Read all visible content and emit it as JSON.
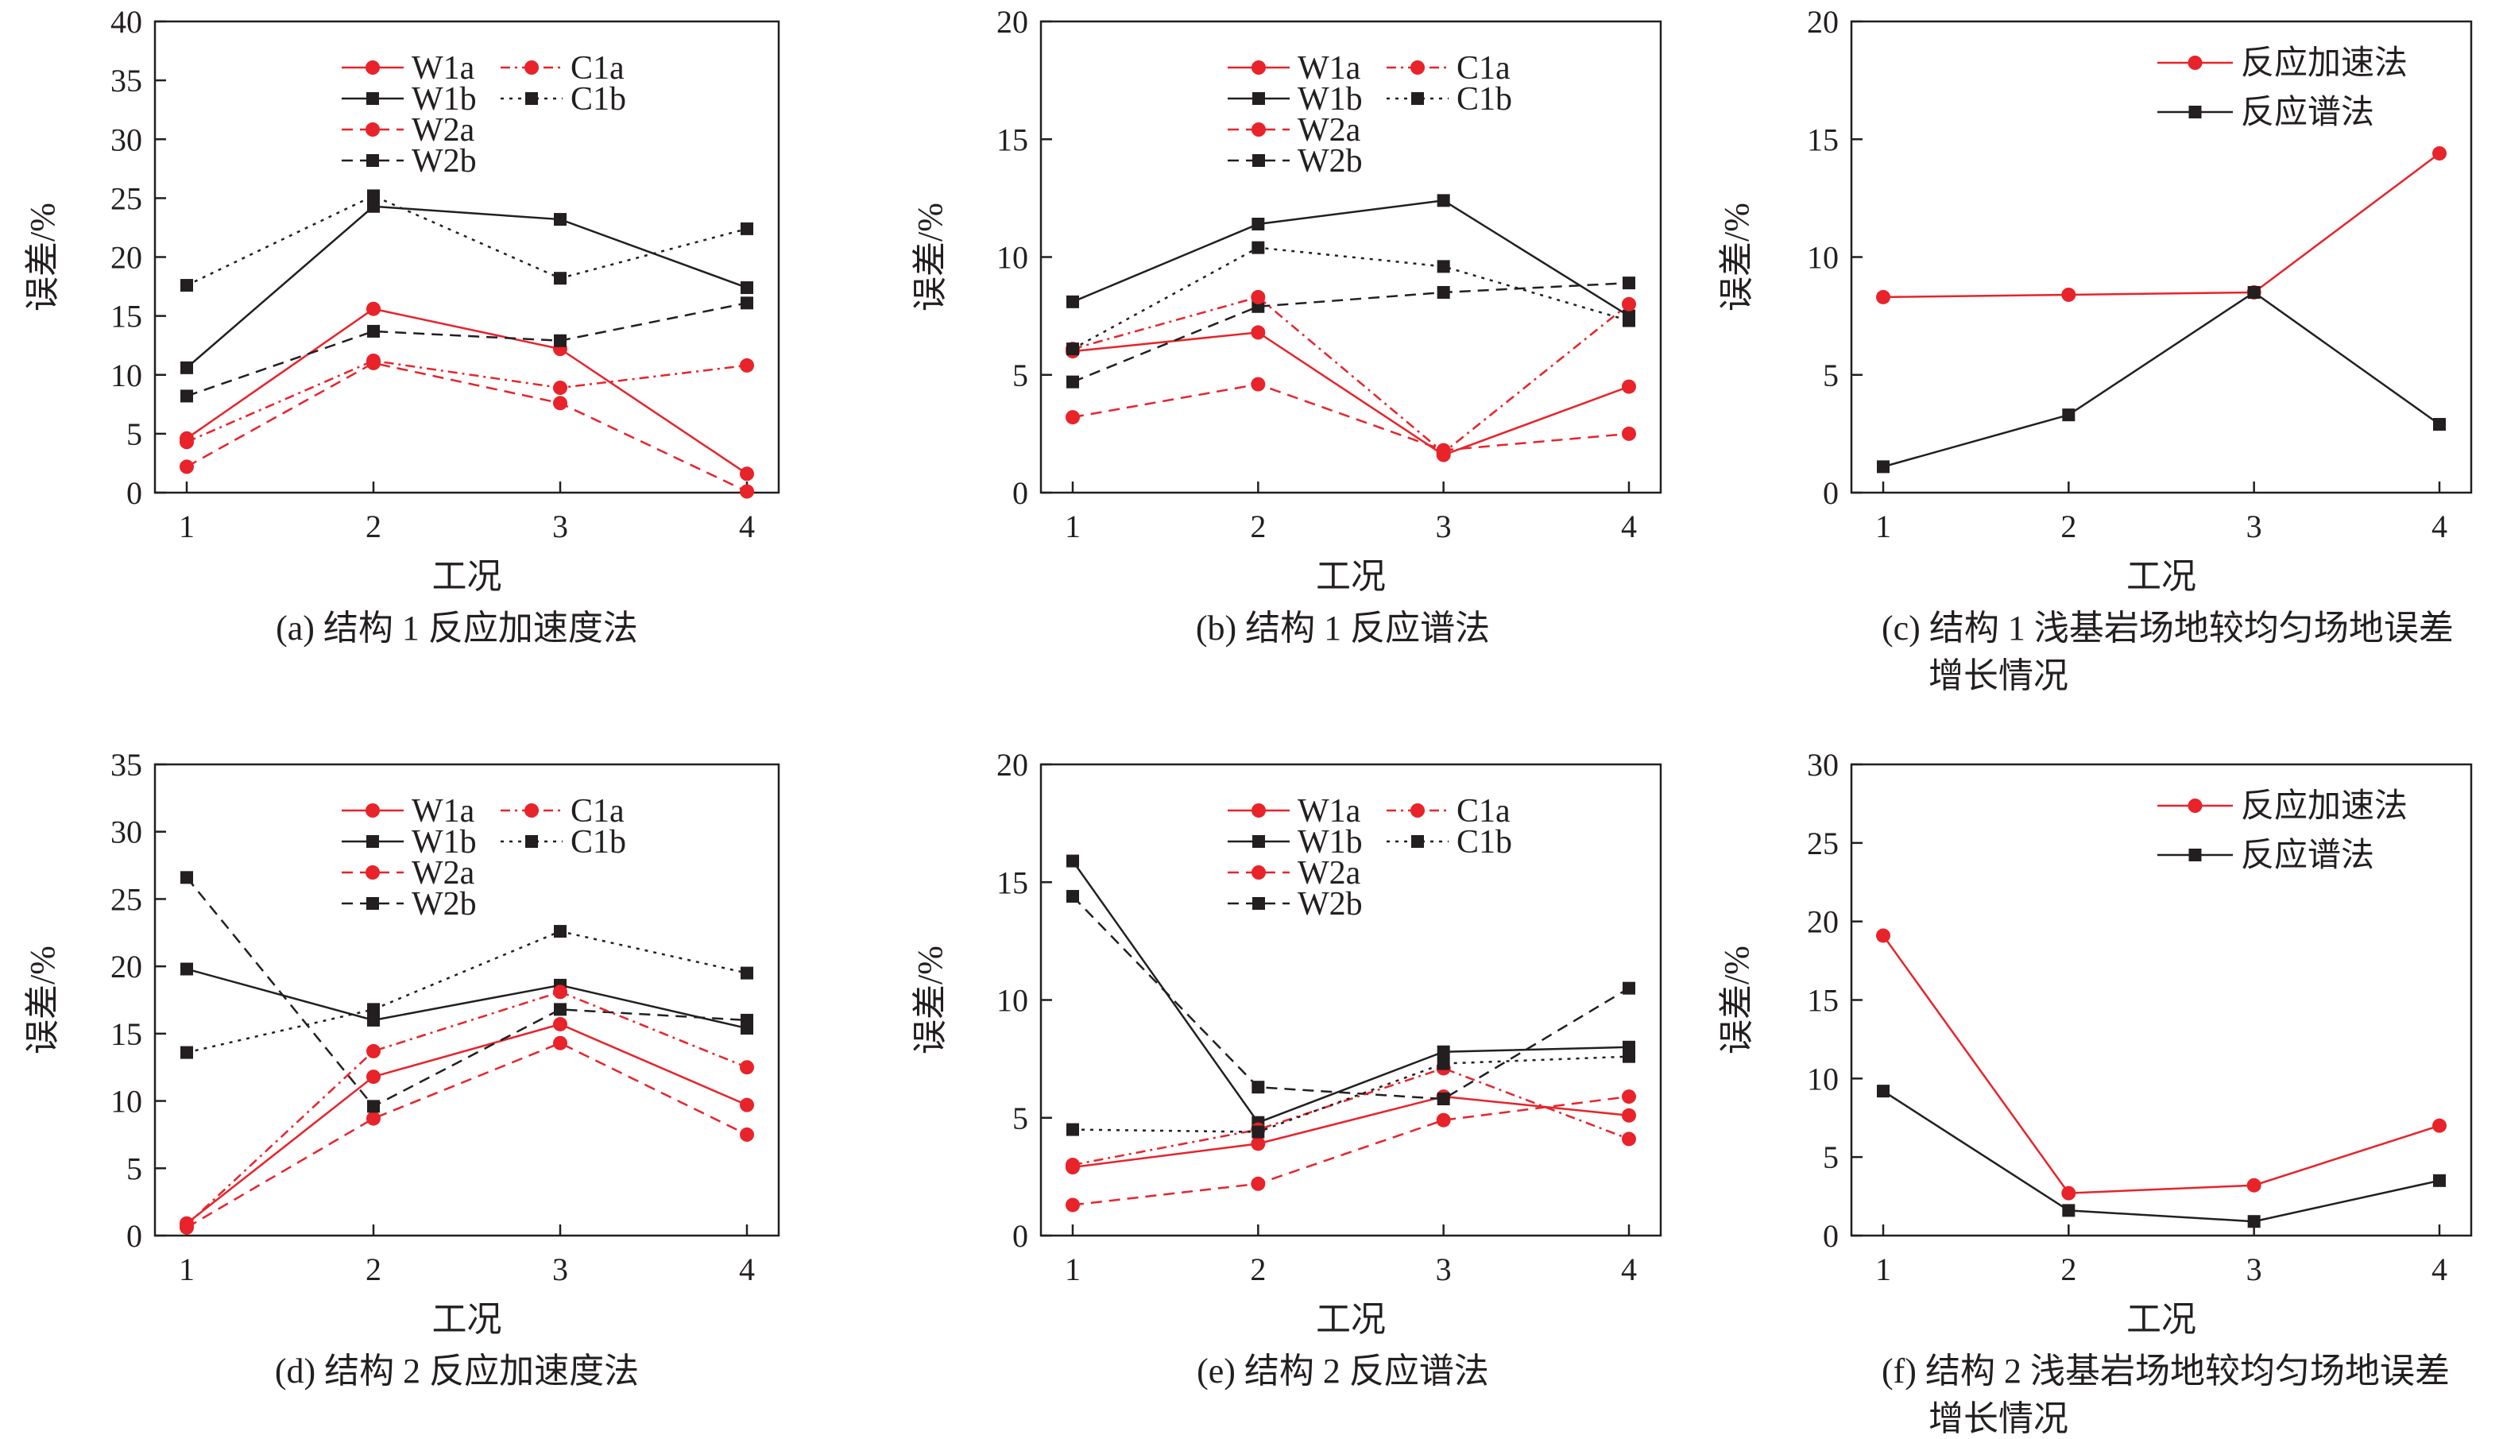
{
  "colors": {
    "red": "#e8232a",
    "black": "#231f20"
  },
  "chart_data": [
    {
      "type": "line",
      "caption": "(a) 结构 1 反应加速度法",
      "xlabel": "工况",
      "ylabel": "误差/%",
      "categories": [
        "1",
        "2",
        "3",
        "4"
      ],
      "ylim": [
        0,
        40
      ],
      "yticks": [
        0,
        5,
        10,
        15,
        20,
        25,
        30,
        35,
        40
      ],
      "legend_columns": 2,
      "legend_position": "top-center",
      "series": [
        {
          "name": "W1a",
          "values": [
            4.6,
            15.6,
            12.2,
            1.6
          ],
          "color": "#e8232a",
          "marker": "circle",
          "dash": "solid"
        },
        {
          "name": "W1b",
          "values": [
            10.6,
            24.3,
            23.2,
            17.4
          ],
          "color": "#231f20",
          "marker": "square",
          "dash": "solid"
        },
        {
          "name": "W2a",
          "values": [
            2.2,
            11.0,
            7.6,
            0.1
          ],
          "color": "#e8232a",
          "marker": "circle",
          "dash": "dashed"
        },
        {
          "name": "W2b",
          "values": [
            8.2,
            13.7,
            12.9,
            16.1
          ],
          "color": "#231f20",
          "marker": "square",
          "dash": "dashed"
        },
        {
          "name": "C1a",
          "values": [
            4.3,
            11.2,
            8.9,
            10.8
          ],
          "color": "#e8232a",
          "marker": "circle",
          "dash": "dotdash"
        },
        {
          "name": "C1b",
          "values": [
            17.6,
            25.2,
            18.2,
            22.4
          ],
          "color": "#231f20",
          "marker": "square",
          "dash": "dotted"
        }
      ]
    },
    {
      "type": "line",
      "caption": "(b) 结构 1 反应谱法",
      "xlabel": "工况",
      "ylabel": "误差/%",
      "categories": [
        "1",
        "2",
        "3",
        "4"
      ],
      "ylim": [
        0,
        20
      ],
      "yticks": [
        0,
        5,
        10,
        15,
        20
      ],
      "legend_columns": 2,
      "legend_position": "top-center",
      "series": [
        {
          "name": "W1a",
          "values": [
            6.0,
            6.8,
            1.6,
            4.5
          ],
          "color": "#e8232a",
          "marker": "circle",
          "dash": "solid"
        },
        {
          "name": "W1b",
          "values": [
            8.1,
            11.4,
            12.4,
            7.5
          ],
          "color": "#231f20",
          "marker": "square",
          "dash": "solid"
        },
        {
          "name": "W2a",
          "values": [
            3.2,
            4.6,
            1.8,
            2.5
          ],
          "color": "#e8232a",
          "marker": "circle",
          "dash": "dashed"
        },
        {
          "name": "W2b",
          "values": [
            4.7,
            7.9,
            8.5,
            8.9
          ],
          "color": "#231f20",
          "marker": "square",
          "dash": "dashed"
        },
        {
          "name": "C1a",
          "values": [
            6.1,
            8.3,
            1.7,
            8.0
          ],
          "color": "#e8232a",
          "marker": "circle",
          "dash": "dotdash"
        },
        {
          "name": "C1b",
          "values": [
            6.1,
            10.4,
            9.6,
            7.3
          ],
          "color": "#231f20",
          "marker": "square",
          "dash": "dotted"
        }
      ]
    },
    {
      "type": "line",
      "caption": "(c) 结构 1 浅基岩场地较均匀场地误差",
      "caption2": "增长情况",
      "xlabel": "工况",
      "ylabel": "误差/%",
      "categories": [
        "1",
        "2",
        "3",
        "4"
      ],
      "ylim": [
        0,
        20
      ],
      "yticks": [
        0,
        5,
        10,
        15,
        20
      ],
      "legend_columns": 1,
      "legend_position": "top-right",
      "series": [
        {
          "name": "反应加速法",
          "values": [
            8.3,
            8.4,
            8.5,
            14.4
          ],
          "color": "#e8232a",
          "marker": "circle",
          "dash": "solid"
        },
        {
          "name": "反应谱法",
          "values": [
            1.1,
            3.3,
            8.5,
            2.9
          ],
          "color": "#231f20",
          "marker": "square",
          "dash": "solid"
        }
      ]
    },
    {
      "type": "line",
      "caption": "(d) 结构 2 反应加速度法",
      "xlabel": "工况",
      "ylabel": "误差/%",
      "categories": [
        "1",
        "2",
        "3",
        "4"
      ],
      "ylim": [
        0,
        35
      ],
      "yticks": [
        0,
        5,
        10,
        15,
        20,
        25,
        30,
        35
      ],
      "legend_columns": 2,
      "legend_position": "top-center",
      "series": [
        {
          "name": "W1a",
          "values": [
            0.9,
            11.8,
            15.7,
            9.7
          ],
          "color": "#e8232a",
          "marker": "circle",
          "dash": "solid"
        },
        {
          "name": "W1b",
          "values": [
            19.8,
            16.0,
            18.6,
            15.4
          ],
          "color": "#231f20",
          "marker": "square",
          "dash": "solid"
        },
        {
          "name": "W2a",
          "values": [
            0.6,
            8.7,
            14.3,
            7.5
          ],
          "color": "#e8232a",
          "marker": "circle",
          "dash": "dashed"
        },
        {
          "name": "W2b",
          "values": [
            26.6,
            9.6,
            16.8,
            16.0
          ],
          "color": "#231f20",
          "marker": "square",
          "dash": "dashed"
        },
        {
          "name": "C1a",
          "values": [
            0.8,
            13.7,
            18.1,
            12.5
          ],
          "color": "#e8232a",
          "marker": "circle",
          "dash": "dotdash"
        },
        {
          "name": "C1b",
          "values": [
            13.6,
            16.8,
            22.6,
            19.5
          ],
          "color": "#231f20",
          "marker": "square",
          "dash": "dotted"
        }
      ]
    },
    {
      "type": "line",
      "caption": "(e) 结构 2 反应谱法",
      "xlabel": "工况",
      "ylabel": "误差/%",
      "categories": [
        "1",
        "2",
        "3",
        "4"
      ],
      "ylim": [
        0,
        20
      ],
      "yticks": [
        0,
        5,
        10,
        15,
        20
      ],
      "legend_columns": 2,
      "legend_position": "top-center",
      "series": [
        {
          "name": "W1a",
          "values": [
            2.9,
            3.9,
            5.9,
            5.1
          ],
          "color": "#e8232a",
          "marker": "circle",
          "dash": "solid"
        },
        {
          "name": "W1b",
          "values": [
            15.9,
            4.8,
            7.8,
            8.0
          ],
          "color": "#231f20",
          "marker": "square",
          "dash": "solid"
        },
        {
          "name": "W2a",
          "values": [
            1.3,
            2.2,
            4.9,
            5.9
          ],
          "color": "#e8232a",
          "marker": "circle",
          "dash": "dashed"
        },
        {
          "name": "W2b",
          "values": [
            14.4,
            6.3,
            5.8,
            10.5
          ],
          "color": "#231f20",
          "marker": "square",
          "dash": "dashed"
        },
        {
          "name": "C1a",
          "values": [
            3.0,
            4.5,
            7.1,
            4.1
          ],
          "color": "#e8232a",
          "marker": "circle",
          "dash": "dotdash"
        },
        {
          "name": "C1b",
          "values": [
            4.5,
            4.4,
            7.3,
            7.6
          ],
          "color": "#231f20",
          "marker": "square",
          "dash": "dotted"
        }
      ]
    },
    {
      "type": "line",
      "caption": "(f) 结构 2 浅基岩场地较均匀场地误差",
      "caption2": "增长情况",
      "xlabel": "工况",
      "ylabel": "误差/%",
      "categories": [
        "1",
        "2",
        "3",
        "4"
      ],
      "ylim": [
        0,
        30
      ],
      "yticks": [
        0,
        5,
        10,
        15,
        20,
        25,
        30
      ],
      "legend_columns": 1,
      "legend_position": "top-right",
      "series": [
        {
          "name": "反应加速法",
          "values": [
            19.1,
            2.7,
            3.2,
            7.0
          ],
          "color": "#e8232a",
          "marker": "circle",
          "dash": "solid"
        },
        {
          "name": "反应谱法",
          "values": [
            9.2,
            1.6,
            0.9,
            3.5
          ],
          "color": "#231f20",
          "marker": "square",
          "dash": "solid"
        }
      ]
    }
  ]
}
